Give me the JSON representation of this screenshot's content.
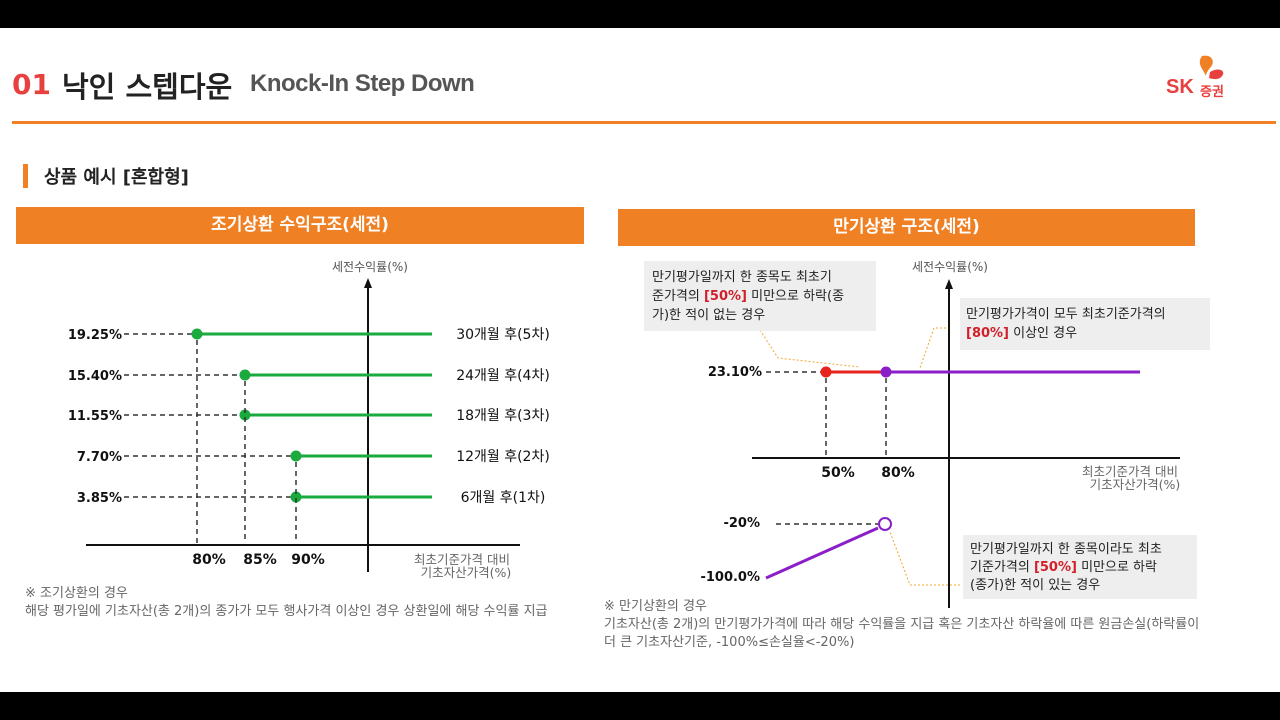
{
  "header": {
    "number": "01",
    "title_ko": "낙인 스텝다운",
    "title_en": "Knock-In Step Down",
    "logo_text": "SK",
    "logo_sub": "증권"
  },
  "section_title": "상품 예시 [혼합형]",
  "left_panel": {
    "title": "조기상환 수익구조(세전)",
    "y_axis_label": "세전수익률(%)",
    "x_axis_label_1": "최초기준가격 대비",
    "x_axis_label_2": "기초자산가격(%)",
    "rows": [
      {
        "rate": "19.25%",
        "label": "30개월 후(5차)",
        "strike": 80
      },
      {
        "rate": "15.40%",
        "label": "24개월 후(4차)",
        "strike": 85
      },
      {
        "rate": "11.55%",
        "label": "18개월 후(3차)",
        "strike": 85
      },
      {
        "rate": "7.70%",
        "label": "12개월 후(2차)",
        "strike": 90
      },
      {
        "rate": "3.85%",
        "label": "6개월 후(1차)",
        "strike": 90
      }
    ],
    "x_ticks": [
      "80%",
      "85%",
      "90%"
    ],
    "note_title": "※ 조기상환의 경우",
    "note_body": "해당 평가일에 기초자산(총 2개)의 종가가 모두 행사가격 이상인 경우 상환일에 해당 수익률 지급"
  },
  "right_panel": {
    "title": "만기상환 구조(세전)",
    "y_axis_label": "세전수익률(%)",
    "x_axis_label_1": "최초기준가격 대비",
    "x_axis_label_2": "기초자산가격(%)",
    "rate_top": "23.10%",
    "rate_mid": "-20%",
    "rate_low": "-100.0%",
    "x_ticks": [
      "50%",
      "80%"
    ],
    "callout_1": {
      "line1": "만기평가일까지 한 종목도 최초기",
      "line2a": "준가격의 ",
      "line2b": "[50%]",
      "line2c": " 미만으로 하락(종",
      "line3": "가)한 적이 없는 경우"
    },
    "callout_2": {
      "line1": "만기평가가격이 모두 최초기준가격의",
      "line2a": "[80%]",
      "line2b": " 이상인 경우"
    },
    "callout_3": {
      "line1": "만기평가일까지 한 종목이라도 최초",
      "line2a": "기준가격의 ",
      "line2b": "[50%]",
      "line2c": " 미만으로 하락",
      "line3": "(종가)한 적이 있는 경우"
    },
    "note_title": "※ 만기상환의 경우",
    "note_body": "기초자산(총 2개)의 만기평가가격에 따라 해당 수익률을 지급 혹은 기초자산 하락율에 따른 원금손실(하락률이 더 큰 기초자산기준, -100%≤손실율<-20%)"
  },
  "colors": {
    "accent": "#f08024",
    "green": "#1aaa3e",
    "red": "#e8221c",
    "purple": "#8a1fc9",
    "highlight": "#d0202a"
  }
}
